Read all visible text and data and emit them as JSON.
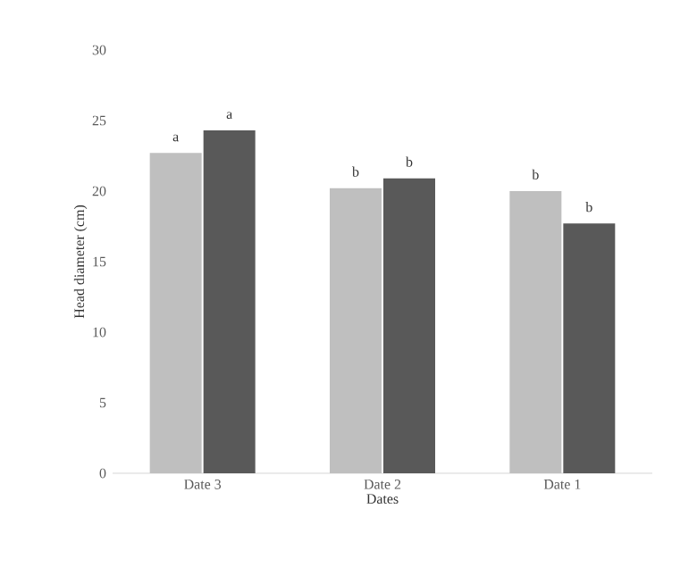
{
  "chart_data": {
    "type": "bar",
    "xlabel": "Dates",
    "ylabel": "Head diameter (cm)",
    "categories": [
      "Date 3",
      "Date 2",
      "Date 1"
    ],
    "series": [
      {
        "color": "#bfbfbf",
        "values": [
          22.7,
          20.2,
          20.0
        ],
        "value_labels": [
          "a",
          "b",
          "b"
        ]
      },
      {
        "color": "#595959",
        "values": [
          24.3,
          20.9,
          17.7
        ],
        "value_labels": [
          "a",
          "b",
          "b"
        ]
      }
    ],
    "ylim": [
      0,
      30
    ],
    "yticks": [
      0,
      5,
      10,
      15,
      20,
      25,
      30
    ]
  }
}
